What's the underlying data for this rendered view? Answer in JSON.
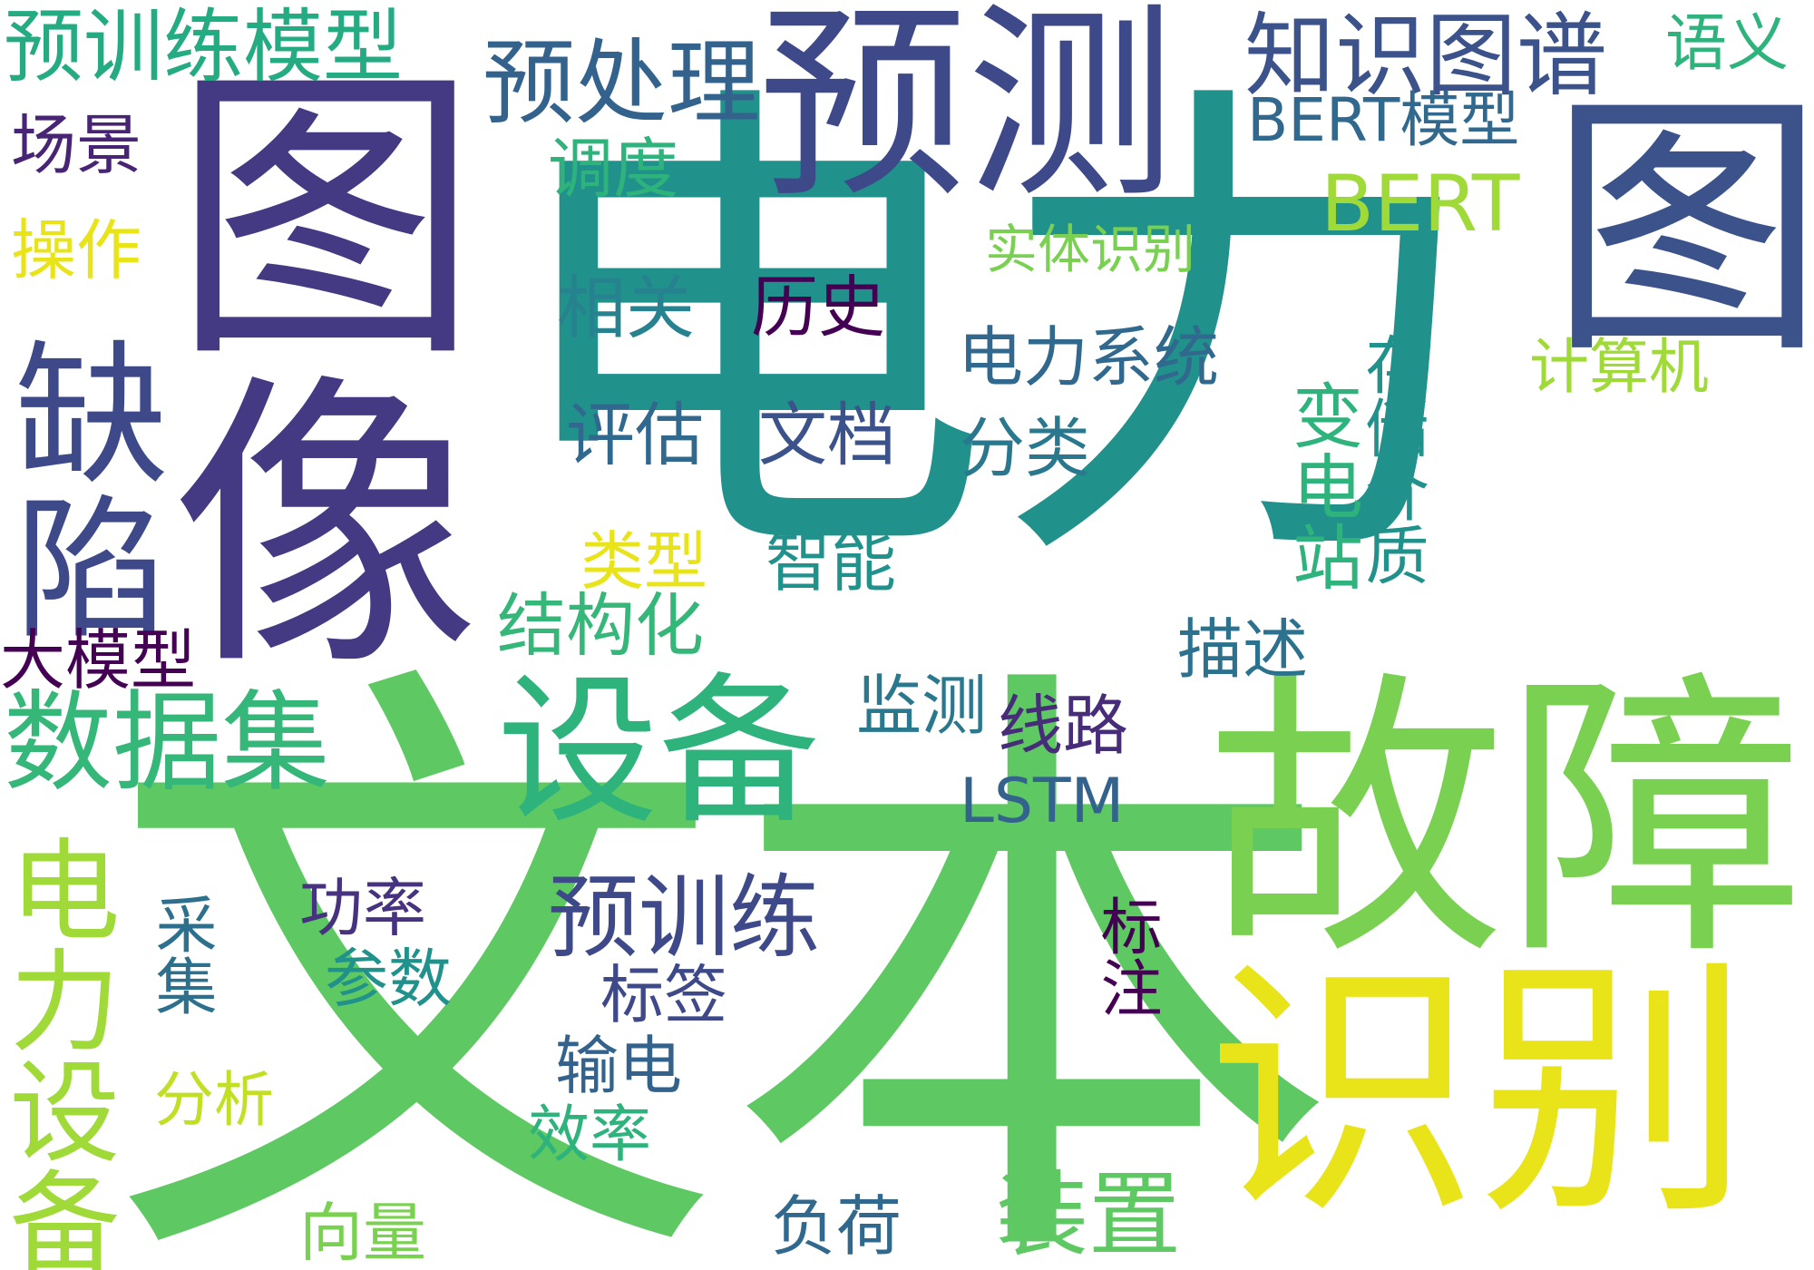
{
  "words": [
    {
      "key": "wenben",
      "text": "文本",
      "color": "#5ec962",
      "orient": "h"
    },
    {
      "key": "dianli",
      "text": "电力",
      "color": "#21918c",
      "orient": "h"
    },
    {
      "key": "tuxiang",
      "text": "图像",
      "color": "#443983",
      "orient": "v"
    },
    {
      "key": "tu",
      "text": "图",
      "color": "#3b528b",
      "orient": "v"
    },
    {
      "key": "guzhang",
      "text": "故障",
      "color": "#7ad151",
      "orient": "h"
    },
    {
      "key": "shibie",
      "text": "识别",
      "color": "#e8e419",
      "orient": "h"
    },
    {
      "key": "yuce",
      "text": "预测",
      "color": "#3e4989",
      "orient": "h"
    },
    {
      "key": "quexian",
      "text": "缺陷",
      "color": "#3e4989",
      "orient": "v"
    },
    {
      "key": "shebei",
      "text": "设备",
      "color": "#2eb37c",
      "orient": "h"
    },
    {
      "key": "shujuji",
      "text": "数据集",
      "color": "#35b779",
      "orient": "h"
    },
    {
      "key": "dianlishebei",
      "text": "电力设备",
      "color": "#a0da39",
      "orient": "v"
    },
    {
      "key": "yuxunlianmx",
      "text": "预训练模型",
      "color": "#25ab82",
      "orient": "h"
    },
    {
      "key": "zhishitupu",
      "text": "知识图谱",
      "color": "#3b528b",
      "orient": "h"
    },
    {
      "key": "yuchuli",
      "text": "预处理",
      "color": "#33638d",
      "orient": "h"
    },
    {
      "key": "yuxunlian",
      "text": "预训练",
      "color": "#3e4989",
      "orient": "h"
    },
    {
      "key": "zhuangzhi",
      "text": "装置",
      "color": "#5ec962",
      "orient": "h"
    },
    {
      "key": "bertmx",
      "text": "BERT模型",
      "color": "#31688e",
      "orient": "h"
    },
    {
      "key": "bert",
      "text": "BERT",
      "color": "#a0da39",
      "orient": "h"
    },
    {
      "key": "yuyi",
      "text": "语义",
      "color": "#2eb37c",
      "orient": "h"
    },
    {
      "key": "changjing",
      "text": "场景",
      "color": "#482475",
      "orient": "h"
    },
    {
      "key": "caozuo",
      "text": "操作",
      "color": "#e8e419",
      "orient": "h"
    },
    {
      "key": "diaodu",
      "text": "调度",
      "color": "#2eb37c",
      "orient": "h"
    },
    {
      "key": "shitishibie",
      "text": "实体识别",
      "color": "#7ad151",
      "orient": "h"
    },
    {
      "key": "xiangguan",
      "text": "相关",
      "color": "#26828e",
      "orient": "h"
    },
    {
      "key": "lishi",
      "text": "历史",
      "color": "#440154",
      "orient": "h"
    },
    {
      "key": "pinggu",
      "text": "评估",
      "color": "#31688e",
      "orient": "h"
    },
    {
      "key": "wendang",
      "text": "文档",
      "color": "#3b528b",
      "orient": "h"
    },
    {
      "key": "dianlixitong",
      "text": "电力系统",
      "color": "#31688e",
      "orient": "h"
    },
    {
      "key": "fenlei",
      "text": "分类",
      "color": "#2a788e",
      "orient": "h"
    },
    {
      "key": "biandianzhan",
      "text": "变电站",
      "color": "#2eb37c",
      "orient": "v"
    },
    {
      "key": "cunchu",
      "text": "存储介质",
      "color": "#21918c",
      "orient": "v"
    },
    {
      "key": "jisuanji",
      "text": "计算机",
      "color": "#a0da39",
      "orient": "h"
    },
    {
      "key": "leixing",
      "text": "类型",
      "color": "#e8e419",
      "orient": "h"
    },
    {
      "key": "zhineng",
      "text": "智能",
      "color": "#21918c",
      "orient": "h"
    },
    {
      "key": "jiegouhua",
      "text": "结构化",
      "color": "#35b779",
      "orient": "h"
    },
    {
      "key": "miaoshu",
      "text": "描述",
      "color": "#2c728e",
      "orient": "h"
    },
    {
      "key": "damoxing",
      "text": "大模型",
      "color": "#440154",
      "orient": "h"
    },
    {
      "key": "jiance",
      "text": "监测",
      "color": "#2a788e",
      "orient": "h"
    },
    {
      "key": "xianlu",
      "text": "线路",
      "color": "#472c7a",
      "orient": "h"
    },
    {
      "key": "lstm",
      "text": "LSTM",
      "color": "#33638d",
      "orient": "h"
    },
    {
      "key": "gonglv",
      "text": "功率",
      "color": "#46327e",
      "orient": "h"
    },
    {
      "key": "caiji",
      "text": "采集",
      "color": "#2d708e",
      "orient": "v"
    },
    {
      "key": "canshu",
      "text": "参数",
      "color": "#21918c",
      "orient": "h"
    },
    {
      "key": "biaoqian",
      "text": "标签",
      "color": "#3e4989",
      "orient": "h"
    },
    {
      "key": "biaozhu",
      "text": "标注",
      "color": "#440154",
      "orient": "v"
    },
    {
      "key": "shudian",
      "text": "输电",
      "color": "#33638d",
      "orient": "h"
    },
    {
      "key": "fenxi",
      "text": "分析",
      "color": "#c2df23",
      "orient": "h"
    },
    {
      "key": "xiaolv",
      "text": "效率",
      "color": "#2eb37c",
      "orient": "h"
    },
    {
      "key": "xiangliang",
      "text": "向量",
      "color": "#7ad151",
      "orient": "h"
    },
    {
      "key": "fuhe",
      "text": "负荷",
      "color": "#31688e",
      "orient": "h"
    }
  ]
}
